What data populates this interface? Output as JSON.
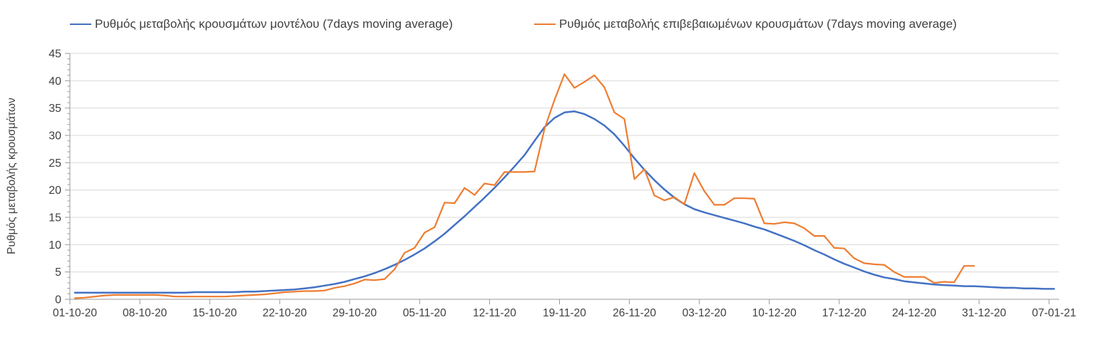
{
  "chart_data": {
    "type": "line",
    "title": "",
    "xlabel": "",
    "ylabel": "Ρυθμός μεταβολής κρουσμάτων",
    "ylim": [
      0,
      45
    ],
    "y_tick_step": 5,
    "y_minor_tick_step": 1,
    "y_tick_labels": [
      0,
      5,
      10,
      15,
      20,
      25,
      30,
      35,
      40,
      45
    ],
    "grid": "horizontal",
    "legend_position": "top",
    "x_unit": "day",
    "x_start_date": "01-10-20",
    "x_end_date": "07-01-21",
    "x_tick_interval_days": 7,
    "x_tick_labels": [
      "01-10-20",
      "08-10-20",
      "15-10-20",
      "22-10-20",
      "29-10-20",
      "05-11-20",
      "12-11-20",
      "19-11-20",
      "26-11-20",
      "03-12-20",
      "10-12-20",
      "17-12-20",
      "24-12-20",
      "31-12-20",
      "07-01-21"
    ],
    "series": [
      {
        "key": "model",
        "name": "Ρυθμός μεταβολής κρουσμάτων μοντέλου (7days moving average)",
        "color": "#4472C4",
        "stroke_width": 2.5,
        "start_day": 0,
        "values": [
          1.2,
          1.2,
          1.2,
          1.2,
          1.2,
          1.2,
          1.2,
          1.2,
          1.2,
          1.2,
          1.2,
          1.2,
          1.3,
          1.3,
          1.3,
          1.3,
          1.3,
          1.4,
          1.4,
          1.5,
          1.6,
          1.7,
          1.8,
          2.0,
          2.2,
          2.5,
          2.8,
          3.2,
          3.7,
          4.2,
          4.8,
          5.5,
          6.3,
          7.2,
          8.2,
          9.3,
          10.6,
          12.0,
          13.6,
          15.2,
          16.9,
          18.6,
          20.4,
          22.3,
          24.3,
          26.4,
          29.0,
          31.5,
          33.2,
          34.2,
          34.4,
          33.9,
          33.0,
          31.8,
          30.2,
          28.1,
          25.8,
          23.7,
          21.8,
          20.1,
          18.6,
          17.4,
          16.5,
          15.9,
          15.4,
          14.9,
          14.4,
          13.9,
          13.3,
          12.8,
          12.1,
          11.4,
          10.7,
          9.9,
          9.0,
          8.2,
          7.3,
          6.5,
          5.8,
          5.1,
          4.5,
          4.0,
          3.7,
          3.3,
          3.1,
          2.9,
          2.7,
          2.6,
          2.5,
          2.4,
          2.4,
          2.3,
          2.2,
          2.1,
          2.1,
          2.0,
          2.0,
          1.9,
          1.9
        ]
      },
      {
        "key": "confirmed",
        "name": "Ρυθμός μεταβολής επιβεβαιωμένων κρουσμάτων (7days moving average)",
        "color": "#ED7D31",
        "stroke_width": 2.2,
        "start_day": 0,
        "values": [
          0.2,
          0.3,
          0.5,
          0.7,
          0.8,
          0.8,
          0.8,
          0.8,
          0.8,
          0.7,
          0.5,
          0.5,
          0.5,
          0.5,
          0.5,
          0.5,
          0.6,
          0.7,
          0.8,
          0.9,
          1.1,
          1.3,
          1.4,
          1.5,
          1.5,
          1.6,
          2.1,
          2.4,
          2.9,
          3.6,
          3.5,
          3.7,
          5.5,
          8.5,
          9.4,
          12.2,
          13.2,
          17.7,
          17.6,
          20.4,
          19.1,
          21.2,
          20.9,
          23.3,
          23.3,
          23.3,
          23.4,
          31.2,
          36.5,
          41.2,
          38.7,
          39.8,
          41.0,
          38.8,
          34.2,
          33.0,
          22.0,
          23.8,
          19.0,
          18.1,
          18.7,
          17.4,
          23.1,
          19.8,
          17.3,
          17.3,
          18.5,
          18.5,
          18.4,
          13.9,
          13.8,
          14.1,
          13.9,
          13.0,
          11.6,
          11.6,
          9.4,
          9.3,
          7.5,
          6.6,
          6.4,
          6.3,
          5.0,
          4.1,
          4.1,
          4.1,
          3.0,
          3.2,
          3.1,
          6.1,
          6.1
        ]
      }
    ]
  },
  "colors": {
    "gridline": "#d9d9d9",
    "axis": "#9a9a9a",
    "tick_text": "#404040"
  }
}
